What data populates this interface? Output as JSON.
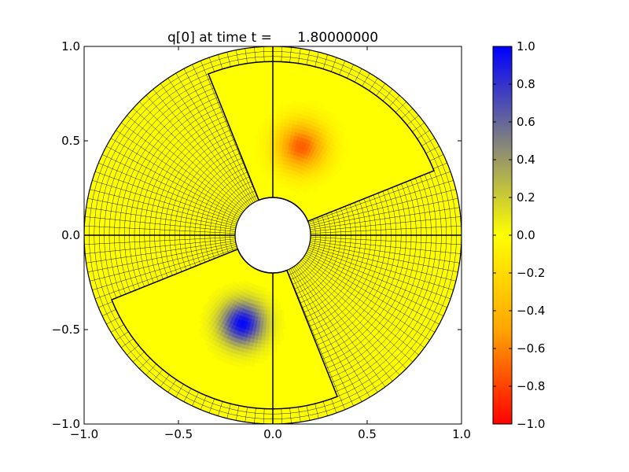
{
  "chart_data": {
    "type": "heatmap",
    "title": "q[0] at time t =      1.80000000",
    "xlabel": "",
    "ylabel": "",
    "xlim": [
      -1.0,
      1.0
    ],
    "ylim": [
      -1.0,
      1.0
    ],
    "x_ticks": [
      {
        "value": -1.0,
        "label": "−1.0"
      },
      {
        "value": -0.5,
        "label": "−0.5"
      },
      {
        "value": 0.0,
        "label": "0.0"
      },
      {
        "value": 0.5,
        "label": "0.5"
      },
      {
        "value": 1.0,
        "label": "1.0"
      }
    ],
    "y_ticks": [
      {
        "value": -1.0,
        "label": "−1.0"
      },
      {
        "value": -0.5,
        "label": "−0.5"
      },
      {
        "value": 0.0,
        "label": "0.0"
      },
      {
        "value": 0.5,
        "label": "0.5"
      },
      {
        "value": 1.0,
        "label": "1.0"
      }
    ],
    "colorbar": {
      "min": -1.0,
      "max": 1.0,
      "ticks": [
        {
          "value": 1.0,
          "label": "1.0"
        },
        {
          "value": 0.8,
          "label": "0.8"
        },
        {
          "value": 0.6,
          "label": "0.6"
        },
        {
          "value": 0.4,
          "label": "0.4"
        },
        {
          "value": 0.2,
          "label": "0.2"
        },
        {
          "value": 0.0,
          "label": "0.0"
        },
        {
          "value": -0.2,
          "label": "−0.2"
        },
        {
          "value": -0.4,
          "label": "−0.4"
        },
        {
          "value": -0.6,
          "label": "−0.6"
        },
        {
          "value": -0.8,
          "label": "−0.8"
        },
        {
          "value": -1.0,
          "label": "−1.0"
        }
      ],
      "colors": {
        "low": "#ff0000",
        "mid_low": "#ffa500",
        "zero": "#ffff00",
        "mid_high": "#808080",
        "high": "#0000ff"
      }
    },
    "domain": {
      "inner_radius": 0.2,
      "outer_radius": 1.0,
      "background_value": 0.0
    },
    "patches": [
      {
        "name": "patch-upper",
        "theta_start_deg": 21.8,
        "theta_end_deg": 111.8,
        "r_inner": 0.2,
        "r_outer": 0.92
      },
      {
        "name": "patch-lower",
        "theta_start_deg": 201.8,
        "theta_end_deg": 291.8,
        "r_inner": 0.2,
        "r_outer": 0.92
      }
    ],
    "blobs": [
      {
        "x": 0.15,
        "y": 0.47,
        "amplitude": -0.72,
        "width": 0.09
      },
      {
        "x": -0.16,
        "y": -0.47,
        "amplitude": 0.98,
        "width": 0.08
      }
    ],
    "grid_on": true,
    "grid": {
      "n_radial": 30,
      "n_angular": 128
    }
  }
}
